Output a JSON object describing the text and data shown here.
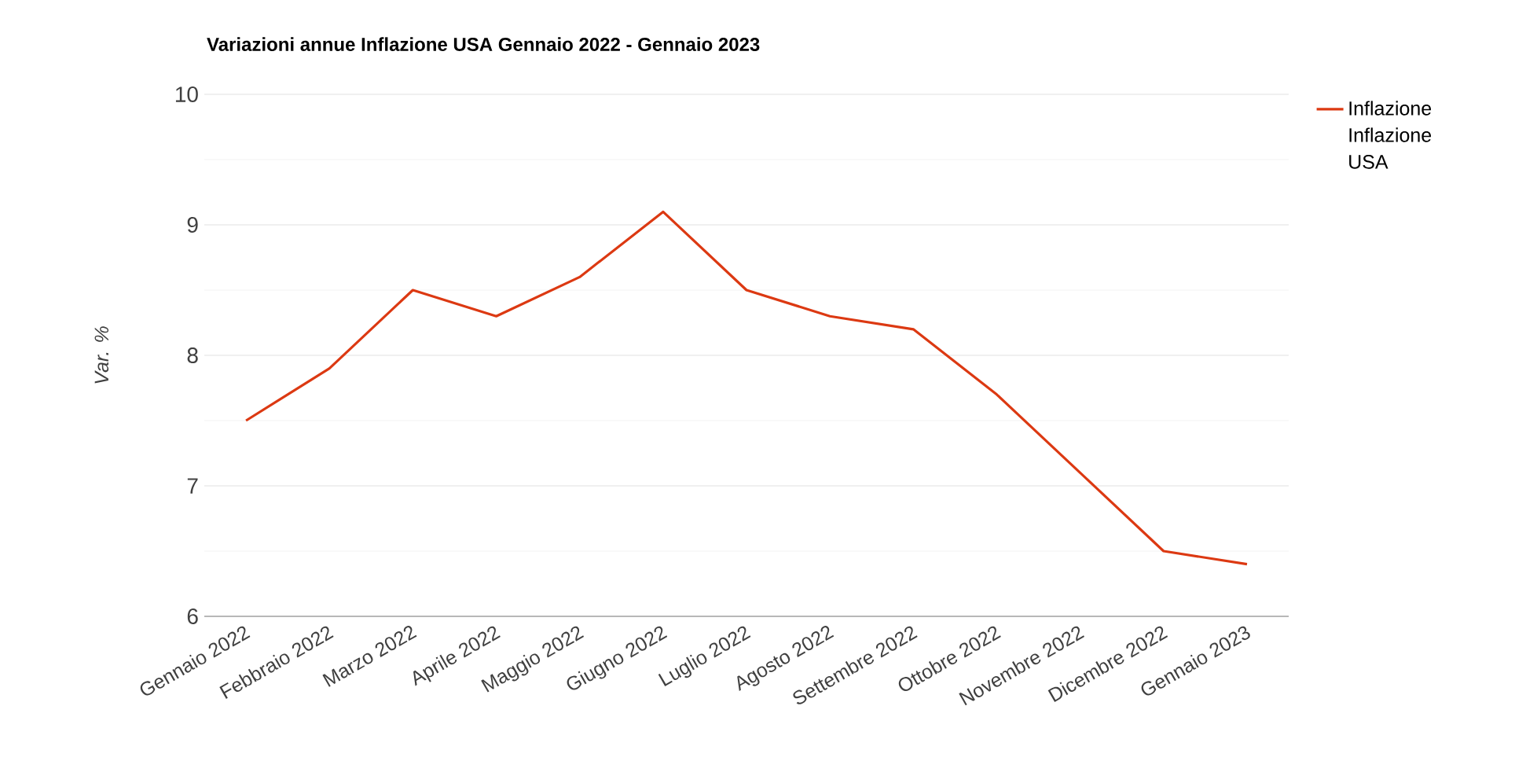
{
  "chart_data": {
    "type": "line",
    "title": "Variazioni annue Inflazione USA Gennaio 2022 - Gennaio 2023",
    "ylabel": "Var. %",
    "categories": [
      "Gennaio 2022",
      "Febbraio 2022",
      "Marzo 2022",
      "Aprile 2022",
      "Maggio 2022",
      "Giugno 2022",
      "Luglio 2022",
      "Agosto 2022",
      "Settembre 2022",
      "Ottobre 2022",
      "Novembre 2022",
      "Dicembre 2022",
      "Gennaio 2023"
    ],
    "series": [
      {
        "name": "Inflazione Inflazione USA",
        "color": "#dc3912",
        "values": [
          7.5,
          7.9,
          8.5,
          8.3,
          8.6,
          9.1,
          8.5,
          8.3,
          8.2,
          7.7,
          7.1,
          6.5,
          6.4
        ]
      }
    ],
    "ylim": [
      6,
      10
    ],
    "yticks": [
      6,
      {
        "value": 6.5,
        "label": null
      },
      7,
      {
        "value": 7.5,
        "label": null
      },
      8,
      {
        "value": 8.5,
        "label": null
      },
      9,
      {
        "value": 9.5,
        "label": null
      },
      10
    ],
    "grid": "y",
    "legend": "right",
    "marker": "none",
    "line_style": "solid"
  }
}
